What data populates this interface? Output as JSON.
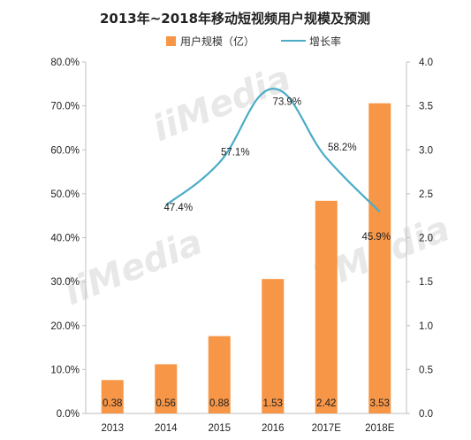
{
  "chart_data": {
    "type": "bar+line",
    "title": "2013年~2018年移动短视频用户规模及预测",
    "categories": [
      "2013",
      "2014",
      "2015",
      "2016",
      "2017E",
      "2018E"
    ],
    "bar_series": {
      "name": "用户规模（亿）",
      "values": [
        0.38,
        0.56,
        0.88,
        1.53,
        2.42,
        3.53
      ],
      "value_labels": [
        "0.38",
        "0.56",
        "0.88",
        "1.53",
        "2.42",
        "3.53"
      ],
      "axis": "right",
      "color": "#F79646"
    },
    "line_series": {
      "name": "增长率",
      "categories": [
        "2014",
        "2015",
        "2016",
        "2017E",
        "2018E"
      ],
      "values": [
        47.4,
        57.1,
        73.9,
        58.2,
        45.9
      ],
      "value_labels": [
        "47.4%",
        "57.1%",
        "73.9%",
        "58.2%",
        "45.9%"
      ],
      "axis": "left",
      "color": "#4BACC6"
    },
    "left_axis": {
      "range": [
        0,
        80
      ],
      "ticks": [
        0,
        10,
        20,
        30,
        40,
        50,
        60,
        70,
        80
      ],
      "tick_labels": [
        "0.0%",
        "10.0%",
        "20.0%",
        "30.0%",
        "40.0%",
        "50.0%",
        "60.0%",
        "70.0%",
        "80.0%"
      ]
    },
    "right_axis": {
      "range": [
        0,
        4
      ],
      "ticks": [
        0,
        0.5,
        1,
        1.5,
        2,
        2.5,
        3,
        3.5,
        4
      ],
      "tick_labels": [
        "0.0",
        "0.5",
        "1.0",
        "1.5",
        "2.0",
        "2.5",
        "3.0",
        "3.5",
        "4.0"
      ]
    },
    "legend_placement": "top-center",
    "grid": false,
    "watermark": "iiMedia"
  }
}
